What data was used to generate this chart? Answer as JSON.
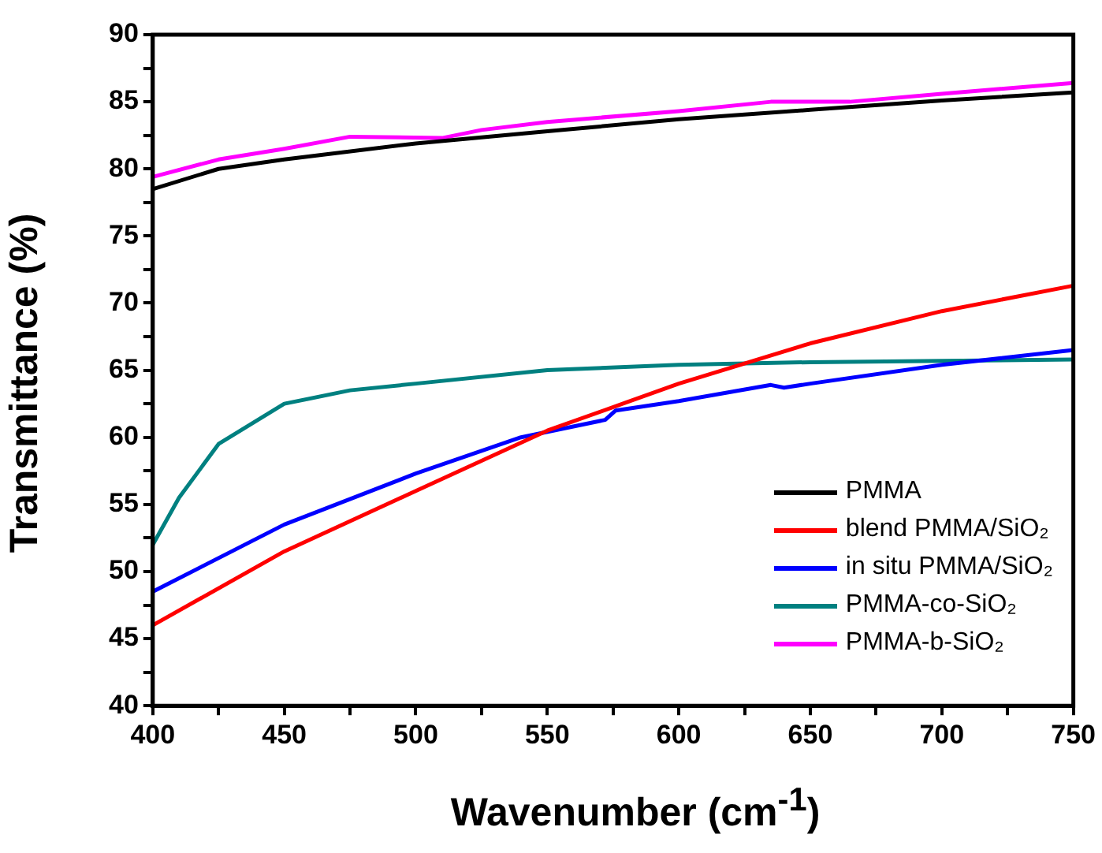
{
  "chart_data": {
    "type": "line",
    "xlabel": "Wavenumber (cm$^{-1}$)",
    "ylabel": "Transmittance (%)",
    "xlim": [
      400,
      750
    ],
    "xticks": [
      400,
      {
        "value": 425,
        "label": null
      },
      450,
      {
        "value": 475,
        "label": null
      },
      500,
      {
        "value": 525,
        "label": null
      },
      550,
      {
        "value": 575,
        "label": null
      },
      600,
      {
        "value": 625,
        "label": null
      },
      650,
      {
        "value": 675,
        "label": null
      },
      700,
      {
        "value": 725,
        "label": null
      },
      750
    ],
    "ylim": [
      40,
      90
    ],
    "yticks": [
      40,
      {
        "value": 42.5,
        "label": null
      },
      45,
      {
        "value": 47.5,
        "label": null
      },
      50,
      {
        "value": 52.5,
        "label": null
      },
      55,
      {
        "value": 57.5,
        "label": null
      },
      60,
      {
        "value": 62.5,
        "label": null
      },
      65,
      {
        "value": 67.5,
        "label": null
      },
      70,
      {
        "value": 72.5,
        "label": null
      },
      75,
      {
        "value": 77.5,
        "label": null
      },
      80,
      {
        "value": 82.5,
        "label": null
      },
      85,
      {
        "value": 87.5,
        "label": null
      },
      90
    ],
    "grid": false,
    "legend": "bottom right",
    "marker": "none",
    "line_style": "solid",
    "series": [
      {
        "name": "PMMA",
        "color": "#000000",
        "x": [
          400,
          425,
          450,
          500,
          550,
          600,
          650,
          700,
          750
        ],
        "values": [
          78.5,
          80,
          80.7,
          81.9,
          82.8,
          83.7,
          84.4,
          85.1,
          85.7
        ]
      },
      {
        "name": "blend PMMA/SiO₂",
        "color": "#ff0000",
        "x": [
          400,
          450,
          500,
          550,
          600,
          650,
          700,
          750
        ],
        "values": [
          46,
          51.5,
          56,
          60.5,
          64,
          67,
          69.4,
          71.3
        ]
      },
      {
        "name": "in situ PMMA/SiO₂",
        "color": "#0000ff",
        "x": [
          400,
          450,
          500,
          540,
          572,
          576,
          600,
          635,
          640,
          650,
          700,
          750
        ],
        "values": [
          48.5,
          53.5,
          57.3,
          60,
          61.3,
          62,
          62.7,
          63.9,
          63.7,
          64,
          65.4,
          66.5
        ]
      },
      {
        "name": "PMMA-co-SiO₂",
        "color": "#008080",
        "x": [
          400,
          410,
          425,
          450,
          475,
          500,
          550,
          600,
          650,
          700,
          750
        ],
        "values": [
          52,
          55.5,
          59.5,
          62.5,
          63.5,
          64,
          65,
          65.4,
          65.6,
          65.7,
          65.8
        ]
      },
      {
        "name": "PMMA-b-SiO₂",
        "color": "#ff00ff",
        "x": [
          400,
          425,
          450,
          475,
          510,
          525,
          550,
          600,
          635,
          665,
          700,
          750
        ],
        "values": [
          79.4,
          80.7,
          81.5,
          82.4,
          82.3,
          82.9,
          83.5,
          84.3,
          85,
          85,
          85.6,
          86.4
        ]
      }
    ]
  }
}
